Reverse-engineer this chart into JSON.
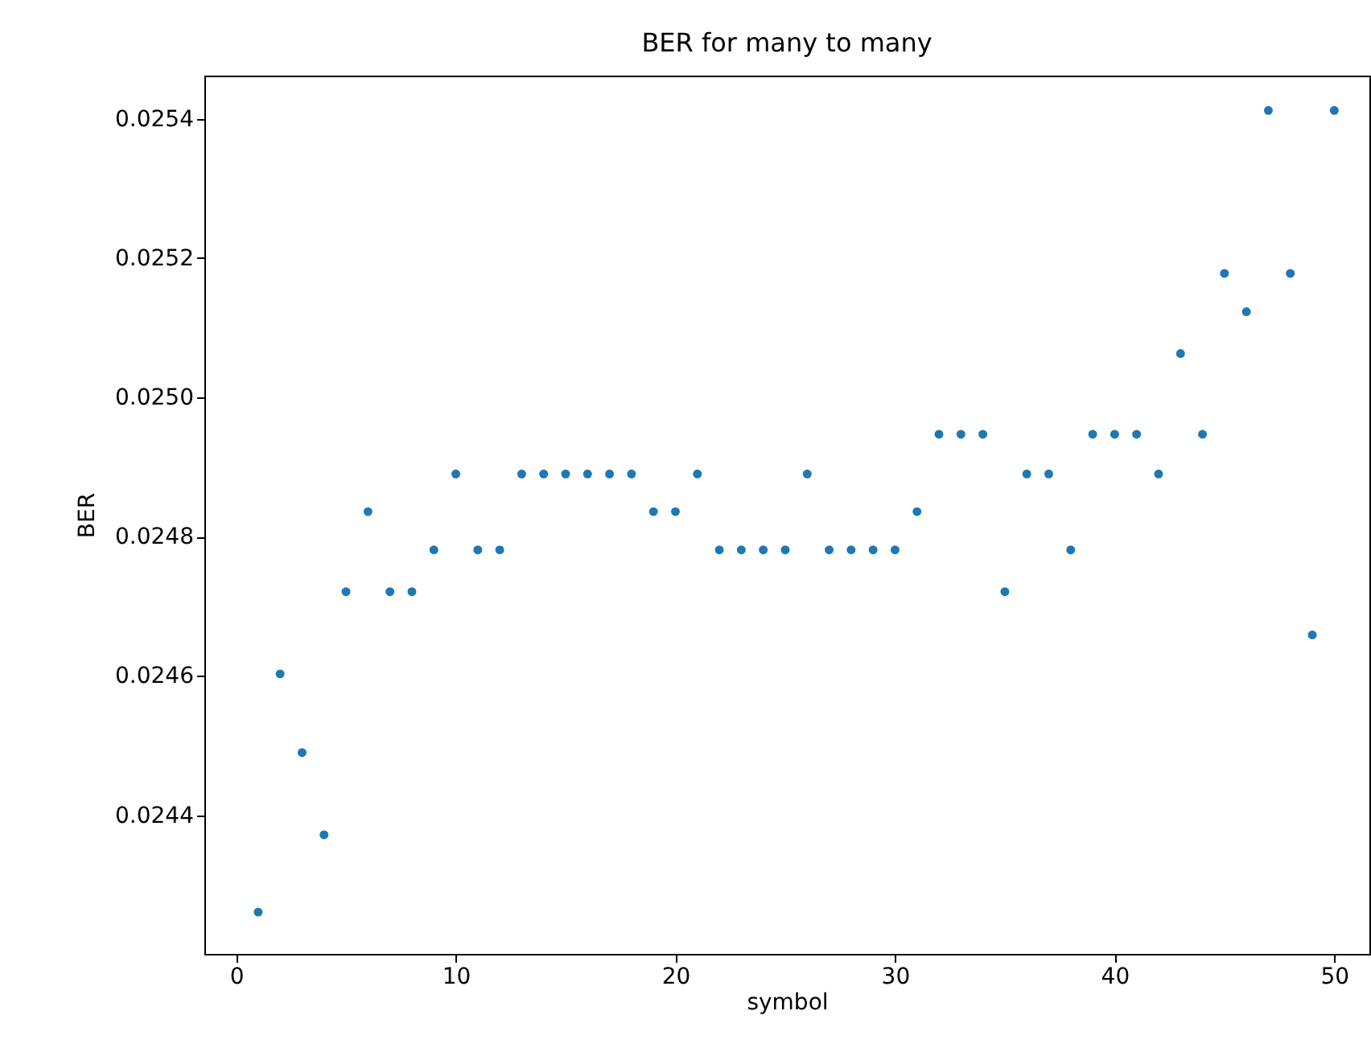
{
  "chart_data": {
    "type": "scatter",
    "title": "BER for many to many",
    "xlabel": "symbol",
    "ylabel": "BER",
    "x": [
      1,
      2,
      3,
      4,
      5,
      6,
      7,
      8,
      9,
      10,
      11,
      12,
      13,
      14,
      15,
      16,
      17,
      18,
      19,
      20,
      21,
      22,
      23,
      24,
      25,
      26,
      27,
      28,
      29,
      30,
      31,
      32,
      33,
      34,
      35,
      36,
      37,
      38,
      39,
      40,
      41,
      42,
      43,
      44,
      45,
      46,
      47,
      48,
      49,
      50
    ],
    "series": [
      {
        "color": "#1f77b4",
        "values": [
          0.024261,
          0.024603,
          0.02449,
          0.024372,
          0.024721,
          0.024836,
          0.024721,
          0.024721,
          0.024781,
          0.02489,
          0.024781,
          0.024781,
          0.02489,
          0.02489,
          0.02489,
          0.02489,
          0.02489,
          0.02489,
          0.024836,
          0.024836,
          0.02489,
          0.024781,
          0.024781,
          0.024781,
          0.024781,
          0.02489,
          0.024781,
          0.024781,
          0.024781,
          0.024781,
          0.024836,
          0.024947,
          0.024947,
          0.024947,
          0.024721,
          0.02489,
          0.02489,
          0.024781,
          0.024947,
          0.024947,
          0.024947,
          0.02489,
          0.025063,
          0.024947,
          0.025178,
          0.025123,
          0.025412,
          0.025178,
          0.024659,
          0.025412
        ]
      }
    ],
    "xlim": [
      -1.45,
      51.6
    ],
    "xticks": [
      0,
      10,
      20,
      30,
      40,
      50
    ],
    "ylim": [
      0.024201,
      0.025462
    ],
    "yticks": [
      0.0244,
      0.0246,
      0.0248,
      {
        "value": 0.025,
        "label": "0.0250"
      },
      0.0252,
      0.0254
    ],
    "marker": "circle",
    "grid": false
  }
}
